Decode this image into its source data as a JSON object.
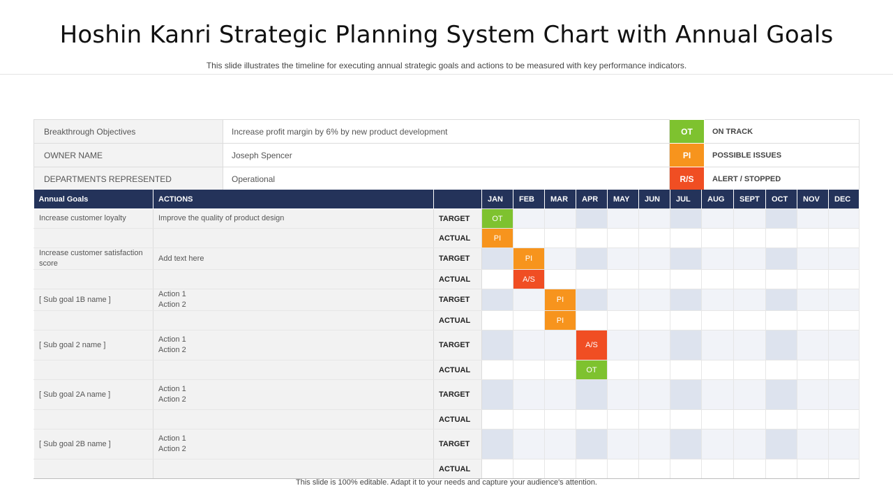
{
  "title": "Hoshin Kanri Strategic Planning System Chart with Annual Goals",
  "subtitle": "This slide illustrates the timeline for executing annual strategic goals and actions to be measured with key performance indicators.",
  "footer": "This slide is 100% editable. Adapt it to your needs and capture your audience's attention.",
  "colors": {
    "OT": "#7ec22f",
    "PI": "#f7941d",
    "R/S": "#f04e23",
    "A/S": "#f04e23",
    "header": "#24335a"
  },
  "info": [
    {
      "label": "Breakthrough Objectives",
      "value": "Increase profit margin by 6% by new product development",
      "code": "OT",
      "desc": "ON TRACK"
    },
    {
      "label": "OWNER NAME",
      "value": "Joseph Spencer",
      "code": "PI",
      "desc": "POSSIBLE ISSUES"
    },
    {
      "label": "DEPARTMENTS REPRESENTED",
      "value": "Operational",
      "code": "R/S",
      "desc": "ALERT / STOPPED"
    }
  ],
  "grid": {
    "headers": {
      "goals": "Annual Goals",
      "actions": "ACTIONS",
      "type": ""
    },
    "months": [
      "JAN",
      "FEB",
      "MAR",
      "APR",
      "MAY",
      "JUN",
      "JUL",
      "AUG",
      "SEPT",
      "OCT",
      "NOV",
      "DEC"
    ],
    "goals": [
      {
        "name": "Increase customer loyalty",
        "actions": [
          "Improve the quality of  product design"
        ],
        "target": {
          "label": "TARGET",
          "status": {
            "JAN": "OT"
          }
        },
        "actual": {
          "label": "ACTUAL",
          "status": {
            "JAN": "PI"
          }
        }
      },
      {
        "name": "Increase customer satisfaction score",
        "actions": [
          "Add text here"
        ],
        "target": {
          "label": "TARGET",
          "status": {
            "FEB": "PI"
          }
        },
        "actual": {
          "label": "ACTUAL",
          "status": {
            "FEB": "A/S"
          }
        }
      },
      {
        "name": "[ Sub goal 1B name ]",
        "actions": [
          "Action 1",
          "Action 2"
        ],
        "target": {
          "label": "TARGET",
          "status": {
            "MAR": "PI"
          }
        },
        "actual": {
          "label": "ACTUAL",
          "status": {
            "MAR": "PI"
          }
        }
      },
      {
        "name": "[ Sub goal 2 name ]",
        "actions": [
          "Action 1",
          "Action 2"
        ],
        "target": {
          "label": "TARGET",
          "status": {
            "APR": "A/S"
          }
        },
        "actual": {
          "label": "ACTUAL",
          "status": {
            "APR": "OT"
          }
        }
      },
      {
        "name": "[ Sub goal 2A name ]",
        "actions": [
          "Action 1",
          "Action 2"
        ],
        "target": {
          "label": "TARGET",
          "status": {}
        },
        "actual": {
          "label": "ACTUAL",
          "status": {}
        }
      },
      {
        "name": "[ Sub goal 2B name ]",
        "actions": [
          "Action 1",
          "Action 2"
        ],
        "target": {
          "label": "TARGET",
          "status": {}
        },
        "actual": {
          "label": "ACTUAL",
          "status": {}
        }
      }
    ]
  }
}
